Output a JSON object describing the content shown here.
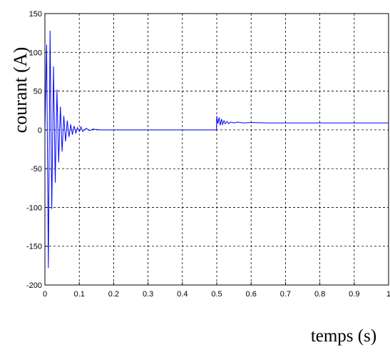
{
  "chart_data": {
    "type": "line",
    "title": "",
    "xlabel": "temps (s)",
    "ylabel": "courant (A)",
    "xlim": [
      0,
      1
    ],
    "ylim": [
      -200,
      150
    ],
    "grid": true,
    "line_color": "#0000ff",
    "x_ticks": [
      "0",
      "0.1",
      "0.2",
      "0.3",
      "0.4",
      "0.5",
      "0.6",
      "0.7",
      "0.8",
      "0.9",
      "1"
    ],
    "y_ticks": [
      "150",
      "100",
      "50",
      "0",
      "-50",
      "-100",
      "-150",
      "-200"
    ],
    "series": [
      {
        "x": [
          0,
          0.005,
          0.01,
          0.015,
          0.02,
          0.025,
          0.03,
          0.035,
          0.04,
          0.045,
          0.05,
          0.055,
          0.06,
          0.065,
          0.07,
          0.075,
          0.08,
          0.085,
          0.09,
          0.095,
          0.1,
          0.105,
          0.11,
          0.12,
          0.13,
          0.14,
          0.16,
          0.2,
          0.3,
          0.4,
          0.499,
          0.5,
          0.503,
          0.507,
          0.51,
          0.514,
          0.517,
          0.521,
          0.525,
          0.53,
          0.535,
          0.54,
          0.55,
          0.56,
          0.58,
          0.6,
          0.65,
          0.7,
          0.8,
          0.9,
          1.0
        ],
        "values": [
          0,
          110,
          -178,
          128,
          -102,
          82,
          -68,
          52,
          -42,
          30,
          -28,
          18,
          -15,
          12,
          -9,
          7,
          -6,
          5,
          -4,
          3,
          -2,
          4,
          -2,
          2,
          -1,
          1,
          0,
          0,
          0,
          0,
          0,
          18,
          8,
          16,
          6,
          14,
          7,
          12,
          8,
          11,
          8,
          10,
          9,
          10,
          9,
          9.5,
          9,
          9,
          9,
          9,
          9
        ]
      }
    ]
  }
}
